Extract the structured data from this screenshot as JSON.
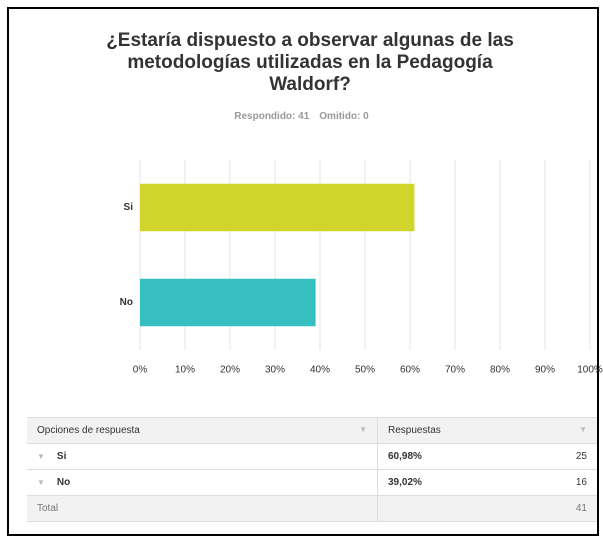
{
  "chart_data": {
    "type": "hbar",
    "title": "¿Estaría dispuesto a observar algunas de las metodologías utilizadas en la Pedagogía Waldorf?",
    "subtitle": [
      "Respondido: 41",
      "Omitido: 0"
    ],
    "categories": [
      "Si",
      "No"
    ],
    "values": [
      60.98,
      39.02
    ],
    "colors": [
      "#d1d52b",
      "#36bfc1"
    ],
    "xlim": [
      0,
      100
    ],
    "xticks": [
      {
        "value": 0,
        "label": "0%"
      },
      {
        "value": 10,
        "label": "10%"
      },
      {
        "value": 20,
        "label": "20%"
      },
      {
        "value": 30,
        "label": "30%"
      },
      {
        "value": 40,
        "label": "40%"
      },
      {
        "value": 50,
        "label": "50%"
      },
      {
        "value": 60,
        "label": "60%"
      },
      {
        "value": 70,
        "label": "70%"
      },
      {
        "value": 80,
        "label": "80%"
      },
      {
        "value": 90,
        "label": "90%"
      },
      {
        "value": 100,
        "label": "100%"
      }
    ],
    "grid": true
  },
  "table": {
    "header": [
      "Opciones de respuesta",
      "Respuestas"
    ],
    "rows": [
      [
        "Si",
        "60,98%",
        "25"
      ],
      [
        "No",
        "39,02%",
        "16"
      ]
    ],
    "total": [
      "Total",
      "41"
    ]
  }
}
